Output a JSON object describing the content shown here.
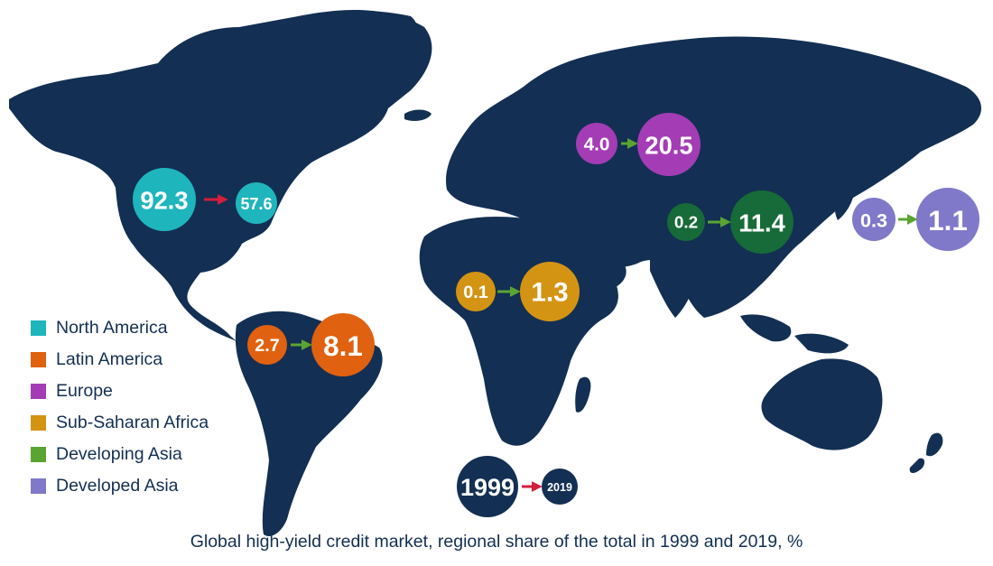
{
  "caption": "Global high-yield credit market, regional share of the total in 1999 and 2019, %",
  "colors": {
    "land": "#132f53",
    "background": "#ffffff",
    "arrow_growth": "#5aa531",
    "arrow_decline": "#d41e3c"
  },
  "legend": [
    {
      "label": "North America",
      "color": "#1fb5bd"
    },
    {
      "label": "Latin America",
      "color": "#e0610f"
    },
    {
      "label": "Europe",
      "color": "#a43cb5"
    },
    {
      "label": "Sub-Saharan Africa",
      "color": "#d39414"
    },
    {
      "label": "Developing Asia",
      "color": "#5aa531"
    },
    {
      "label": "Developed Asia",
      "color": "#8079c9"
    }
  ],
  "key": {
    "from_label": "1999",
    "to_label": "2019"
  },
  "regions": [
    {
      "name": "North America",
      "value_1999": "92.3",
      "value_2019": "57.6",
      "color": "#1fb5bd",
      "trend": "decline"
    },
    {
      "name": "Latin America",
      "value_1999": "2.7",
      "value_2019": "8.1",
      "color": "#e0610f",
      "trend": "growth"
    },
    {
      "name": "Europe",
      "value_1999": "4.0",
      "value_2019": "20.5",
      "color": "#a43cb5",
      "trend": "growth"
    },
    {
      "name": "Sub-Saharan Africa",
      "value_1999": "0.1",
      "value_2019": "1.3",
      "color": "#d39414",
      "trend": "growth"
    },
    {
      "name": "Developing Asia",
      "value_1999": "0.2",
      "value_2019": "11.4",
      "color": "#166b38",
      "trend": "growth"
    },
    {
      "name": "Developed Asia",
      "value_1999": "0.3",
      "value_2019": "1.1",
      "color": "#8079c9",
      "trend": "growth"
    }
  ]
}
